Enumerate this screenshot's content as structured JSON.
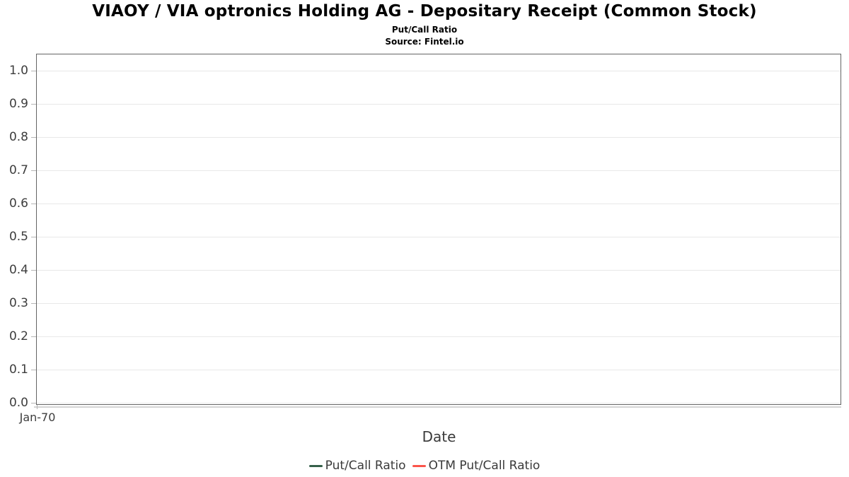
{
  "header": {
    "title": "VIAOY / VIA optronics Holding AG - Depositary Receipt (Common Stock)",
    "subtitle": "Put/Call Ratio",
    "source": "Source: Fintel.io"
  },
  "chart_data": {
    "type": "line",
    "title": "VIAOY / VIA optronics Holding AG - Depositary Receipt (Common Stock)",
    "subtitle": "Put/Call Ratio",
    "source": "Source: Fintel.io",
    "xlabel": "Date",
    "ylabel": "",
    "ylim": [
      0.0,
      1.05
    ],
    "grid": true,
    "legend_position": "bottom-center",
    "y_tick_labels": [
      "0.0",
      "0.1",
      "0.2",
      "0.3",
      "0.4",
      "0.5",
      "0.6",
      "0.7",
      "0.8",
      "0.9",
      "1.0"
    ],
    "x_tick_labels": [
      "Jan-70"
    ],
    "series": [
      {
        "name": "Put/Call Ratio",
        "color": "#35604a",
        "x": [],
        "values": []
      },
      {
        "name": "OTM Put/Call Ratio",
        "color": "#fb544a",
        "x": [],
        "values": []
      }
    ]
  }
}
